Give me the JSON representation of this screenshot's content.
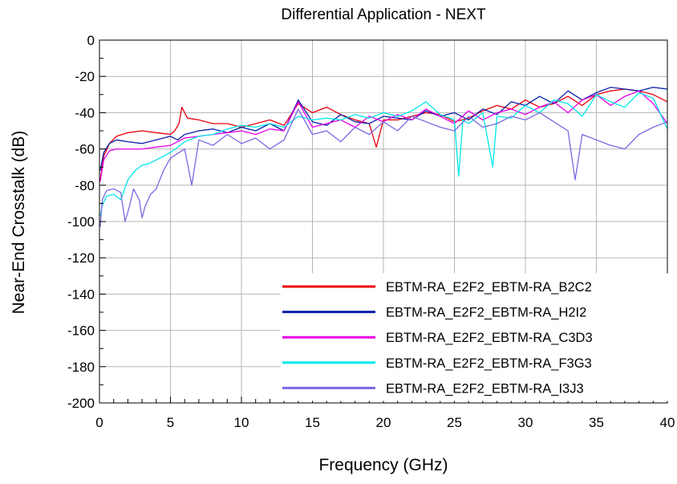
{
  "chart_data": {
    "type": "line",
    "title": "Differential Application - NEXT",
    "xlabel": "Frequency (GHz)",
    "ylabel": "Near-End Crosstalk (dB)",
    "xlim": [
      0,
      40
    ],
    "ylim": [
      -200,
      0
    ],
    "xticks": [
      0,
      5,
      10,
      15,
      20,
      25,
      30,
      35,
      40
    ],
    "yticks": [
      0,
      -20,
      -40,
      -60,
      -80,
      -100,
      -120,
      -140,
      -160,
      -180,
      -200
    ],
    "grid": true,
    "legend_position": "bottom-right",
    "series": [
      {
        "name": "EBTM-RA_E2F2_EBTM-RA_B2C2",
        "color": "#e8000b",
        "x": [
          0.05,
          0.3,
          0.7,
          1.2,
          2,
          3,
          4,
          5,
          5.3,
          5.6,
          5.8,
          6.2,
          7,
          8,
          9,
          10,
          11,
          12,
          13,
          14,
          15,
          16,
          17,
          18,
          19,
          19.5,
          20,
          21,
          22,
          23,
          24,
          25,
          26,
          27,
          28,
          29,
          30,
          31,
          32,
          33,
          34,
          35,
          36,
          37,
          38,
          39,
          40
        ],
        "y": [
          -77,
          -64,
          -57,
          -53,
          -51,
          -50,
          -51,
          -52,
          -50,
          -46,
          -37,
          -43,
          -44,
          -46,
          -46,
          -48,
          -46,
          -44,
          -47,
          -35,
          -40,
          -37,
          -41,
          -44,
          -46,
          -59,
          -44,
          -44,
          -42,
          -40,
          -41,
          -45,
          -43,
          -39,
          -36,
          -38,
          -33,
          -37,
          -35,
          -31,
          -36,
          -30,
          -28,
          -27,
          -28,
          -30,
          -34
        ]
      },
      {
        "name": "EBTM-RA_E2F2_EBTM-RA_H2I2",
        "color": "#0a20a8",
        "x": [
          0.05,
          0.3,
          0.7,
          1.2,
          2,
          3,
          4,
          5,
          5.5,
          6,
          7,
          8,
          9,
          10,
          11,
          12,
          13,
          14,
          15,
          16,
          17,
          18,
          19,
          20,
          21,
          22,
          23,
          24,
          25,
          26,
          27,
          28,
          29,
          30,
          31,
          32,
          33,
          34,
          35,
          36,
          37,
          38,
          39,
          40
        ],
        "y": [
          -72,
          -62,
          -57,
          -55,
          -56,
          -57,
          -55,
          -53,
          -55,
          -52,
          -50,
          -49,
          -51,
          -48,
          -50,
          -46,
          -50,
          -33,
          -45,
          -47,
          -41,
          -45,
          -46,
          -42,
          -43,
          -44,
          -39,
          -42,
          -40,
          -44,
          -38,
          -41,
          -34,
          -36,
          -31,
          -35,
          -28,
          -33,
          -29,
          -26,
          -27,
          -28,
          -26,
          -27
        ]
      },
      {
        "name": "EBTM-RA_E2F2_EBTM-RA_C3D3",
        "color": "#e800e8",
        "x": [
          0.05,
          0.3,
          0.7,
          1.2,
          2,
          3,
          4,
          5,
          6,
          7,
          8,
          9,
          10,
          11,
          12,
          13,
          14,
          15,
          16,
          17,
          18,
          19,
          20,
          21,
          22,
          23,
          24,
          25,
          26,
          27,
          28,
          29,
          30,
          31,
          32,
          33,
          34,
          35,
          36,
          37,
          38,
          39,
          40
        ],
        "y": [
          -78,
          -66,
          -61,
          -60,
          -60,
          -60,
          -59,
          -58,
          -54,
          -53,
          -52,
          -51,
          -50,
          -52,
          -49,
          -50,
          -34,
          -48,
          -46,
          -44,
          -48,
          -42,
          -45,
          -41,
          -44,
          -38,
          -42,
          -46,
          -39,
          -44,
          -40,
          -38,
          -41,
          -37,
          -34,
          -40,
          -33,
          -30,
          -36,
          -31,
          -28,
          -35,
          -46
        ]
      },
      {
        "name": "EBTM-RA_E2F2_EBTM-RA_F3G3",
        "color": "#00e8e8",
        "x": [
          0.05,
          0.2,
          0.5,
          1,
          1.5,
          2,
          2.5,
          3,
          3.5,
          4,
          5,
          6,
          7,
          8,
          9,
          10,
          11,
          12,
          13,
          14,
          15,
          16,
          17,
          18,
          19,
          20,
          21,
          22,
          23,
          24,
          25,
          25.3,
          25.6,
          26,
          27,
          27.7,
          28,
          29,
          30,
          31,
          32,
          33,
          34,
          35,
          36,
          37,
          38,
          39,
          40
        ],
        "y": [
          -97,
          -91,
          -86,
          -85,
          -88,
          -77,
          -72,
          -69,
          -68,
          -66,
          -62,
          -56,
          -53,
          -52,
          -49,
          -47,
          -48,
          -46,
          -48,
          -42,
          -44,
          -43,
          -44,
          -41,
          -43,
          -40,
          -42,
          -39,
          -34,
          -41,
          -44,
          -75,
          -44,
          -46,
          -40,
          -70,
          -42,
          -43,
          -36,
          -40,
          -33,
          -35,
          -42,
          -30,
          -34,
          -37,
          -29,
          -32,
          -49
        ]
      },
      {
        "name": "EBTM-RA_E2F2_EBTM-RA_I3J3",
        "color": "#7a68e0",
        "x": [
          0.05,
          0.2,
          0.5,
          1,
          1.5,
          1.8,
          2.1,
          2.4,
          2.8,
          3,
          3.2,
          3.6,
          4,
          4.5,
          5,
          6,
          6.5,
          7,
          8,
          9,
          10,
          11,
          12,
          13,
          14,
          15,
          16,
          17,
          18,
          19,
          20,
          21,
          22,
          23,
          24,
          25,
          26,
          27,
          28,
          29,
          30,
          31,
          32,
          33,
          33.5,
          34,
          35,
          36,
          37,
          38,
          39,
          40
        ],
        "y": [
          -103,
          -88,
          -83,
          -82,
          -84,
          -100,
          -92,
          -82,
          -88,
          -98,
          -92,
          -85,
          -82,
          -72,
          -65,
          -60,
          -80,
          -55,
          -58,
          -52,
          -57,
          -54,
          -60,
          -55,
          -38,
          -52,
          -50,
          -56,
          -48,
          -52,
          -45,
          -50,
          -42,
          -45,
          -48,
          -50,
          -42,
          -48,
          -46,
          -42,
          -44,
          -40,
          -45,
          -50,
          -77,
          -52,
          -55,
          -58,
          -60,
          -52,
          -48,
          -45
        ]
      }
    ]
  }
}
